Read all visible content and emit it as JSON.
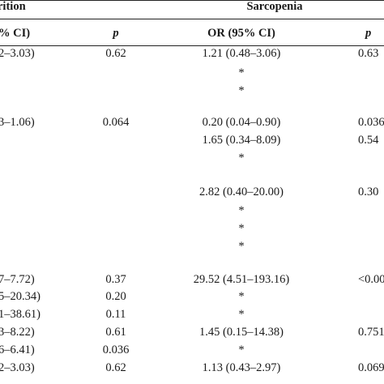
{
  "header": {
    "group_left": "rition",
    "group_right": "Sarcopenia",
    "col_ci_left": "% CI)",
    "col_p_left": "p",
    "col_or_right": "OR (95% CI)",
    "col_p_right": "p"
  },
  "rows": [
    {
      "ci_left": "2–3.03)",
      "p_left": "0.62",
      "or_right": "1.21 (0.48–3.06)",
      "p_right": "0.63"
    },
    {
      "ci_left": "",
      "p_left": "",
      "or_right": "*",
      "p_right": ""
    },
    {
      "ci_left": "",
      "p_left": "",
      "or_right": "*",
      "p_right": ""
    },
    {
      "ci_left": "3–1.06)",
      "p_left": "0.064",
      "or_right": "0.20 (0.04–0.90)",
      "p_right": "0.036"
    },
    {
      "ci_left": "",
      "p_left": "",
      "or_right": "1.65 (0.34–8.09)",
      "p_right": "0.54"
    },
    {
      "ci_left": "",
      "p_left": "",
      "or_right": "*",
      "p_right": ""
    },
    {
      "ci_left": "",
      "p_left": "",
      "or_right": "2.82 (0.40–20.00)",
      "p_right": "0.30"
    },
    {
      "ci_left": "",
      "p_left": "",
      "or_right": "*",
      "p_right": ""
    },
    {
      "ci_left": "",
      "p_left": "",
      "or_right": "*",
      "p_right": ""
    },
    {
      "ci_left": "",
      "p_left": "",
      "or_right": "*",
      "p_right": ""
    },
    {
      "ci_left": "7–7.72)",
      "p_left": "0.37",
      "or_right": "29.52 (4.51–193.16)",
      "p_right": "<0.00"
    },
    {
      "ci_left": "5–20.34)",
      "p_left": "0.20",
      "or_right": "*",
      "p_right": ""
    },
    {
      "ci_left": "1–38.61)",
      "p_left": "0.11",
      "or_right": "*",
      "p_right": ""
    },
    {
      "ci_left": "3–8.22)",
      "p_left": "0.61",
      "or_right": "1.45 (0.15–14.38)",
      "p_right": "0.751"
    },
    {
      "ci_left": "6–6.41)",
      "p_left": "0.036",
      "or_right": "*",
      "p_right": ""
    },
    {
      "ci_left": "2–3.03)",
      "p_left": "0.62",
      "or_right": "1.13 (0.43–2.97)",
      "p_right": "0.069"
    }
  ]
}
